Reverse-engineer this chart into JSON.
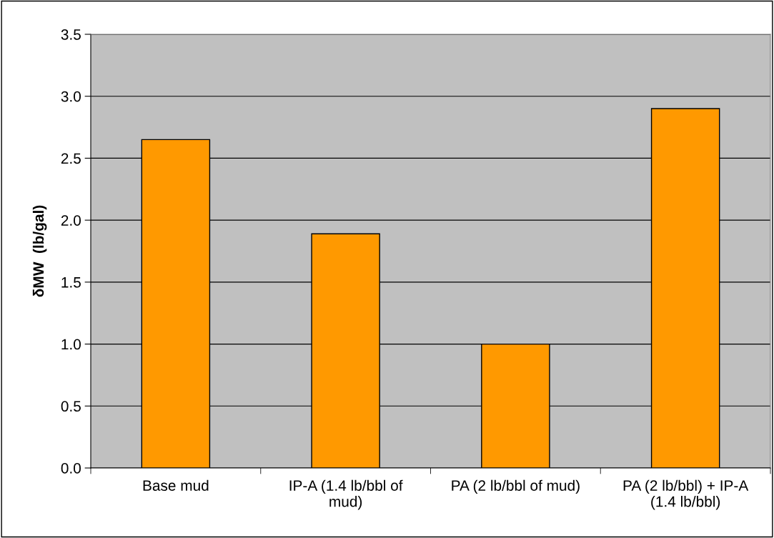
{
  "chart_data": {
    "type": "bar",
    "ylabel": "δMW  (lb/gal)",
    "categories": [
      "Base mud",
      "IP-A (1.4 lb/bbl of\nmud)",
      "PA (2 lb/bbl of mud)",
      "PA (2 lb/bbl) + IP-A\n(1.4 lb/bbl)"
    ],
    "values": [
      2.65,
      1.89,
      1.0,
      2.9
    ],
    "color": "#ff9900",
    "ylim": [
      0,
      3.5
    ],
    "yticks": [
      {
        "value": 0,
        "label": "0.0"
      },
      {
        "value": 0.5,
        "label": "0.5"
      },
      {
        "value": 1,
        "label": "1.0"
      },
      {
        "value": 1.5,
        "label": "1.5"
      },
      {
        "value": 2,
        "label": "2.0"
      },
      {
        "value": 2.5,
        "label": "2.5"
      },
      {
        "value": 3,
        "label": "3.0"
      },
      {
        "value": 3.5,
        "label": "3.5"
      }
    ],
    "grid": "y"
  }
}
